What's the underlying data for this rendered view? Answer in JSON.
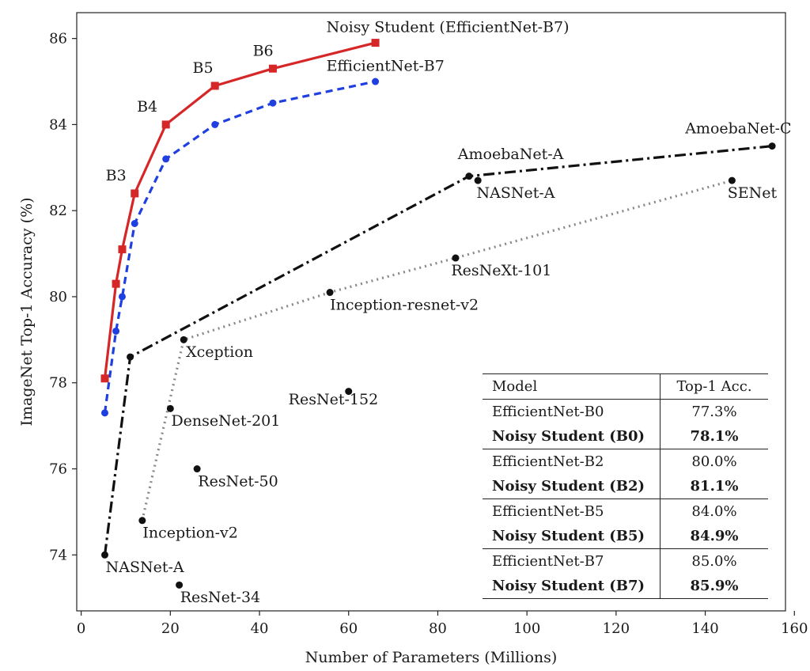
{
  "chart_data": {
    "type": "scatter",
    "xlabel": "Number of Parameters (Millions)",
    "ylabel": "ImageNet Top-1 Accuracy (%)",
    "xlim": [
      -1,
      158
    ],
    "ylim": [
      72.7,
      86.6
    ],
    "xticks": [
      0,
      20,
      40,
      60,
      80,
      100,
      120,
      140,
      160
    ],
    "yticks": [
      74,
      76,
      78,
      80,
      82,
      84,
      86
    ],
    "grid": false,
    "series": [
      {
        "name": "Noisy Student (EfficientNet-B7)",
        "style": "solid",
        "marker": "square",
        "color": "#d62728",
        "points": [
          [
            5.3,
            78.1
          ],
          [
            7.8,
            80.3
          ],
          [
            9.2,
            81.1
          ],
          [
            12,
            82.4
          ],
          [
            19,
            84.0
          ],
          [
            30,
            84.9
          ],
          [
            43,
            85.3
          ],
          [
            66,
            85.9
          ]
        ]
      },
      {
        "name": "EfficientNet-B7",
        "style": "dashed",
        "marker": "circle",
        "color": "#1f3fe0",
        "points": [
          [
            5.3,
            77.3
          ],
          [
            7.8,
            79.2
          ],
          [
            9.2,
            80.0
          ],
          [
            12,
            81.7
          ],
          [
            19,
            83.2
          ],
          [
            30,
            84.0
          ],
          [
            43,
            84.5
          ],
          [
            66,
            85.0
          ]
        ]
      },
      {
        "style": "dashdot",
        "marker": "circle",
        "color": "#111111",
        "points": [
          [
            5.3,
            74.0
          ],
          [
            11,
            78.6
          ],
          [
            87,
            82.8
          ],
          [
            155,
            83.5
          ]
        ]
      },
      {
        "style": "dotted",
        "marker": "circle",
        "color": "#888888",
        "points": [
          [
            13.7,
            74.8
          ],
          [
            23,
            79.0
          ],
          [
            55.8,
            80.1
          ],
          [
            84,
            80.9
          ],
          [
            146,
            82.7
          ]
        ]
      }
    ],
    "extra_points": [
      {
        "x": 20,
        "y": 77.4,
        "color": "#111111"
      },
      {
        "x": 60,
        "y": 77.8,
        "color": "#111111"
      },
      {
        "x": 26,
        "y": 76.0,
        "color": "#111111"
      },
      {
        "x": 22,
        "y": 73.3,
        "color": "#111111"
      },
      {
        "x": 89,
        "y": 82.7,
        "color": "#111111"
      }
    ],
    "annotations": [
      {
        "text": "Noisy Student (EfficientNet-B7)",
        "x": 55,
        "y": 86.15
      },
      {
        "text": "EfficientNet-B7",
        "x": 55,
        "y": 85.25
      },
      {
        "text": "B6",
        "x": 38.5,
        "y": 85.6
      },
      {
        "text": "B5",
        "x": 25,
        "y": 85.2
      },
      {
        "text": "B4",
        "x": 12.5,
        "y": 84.3
      },
      {
        "text": "B3",
        "x": 5.5,
        "y": 82.7
      },
      {
        "text": "AmoebaNet-A",
        "x": 84.5,
        "y": 83.2
      },
      {
        "text": "NASNet-A",
        "x": 88.7,
        "y": 82.3
      },
      {
        "text": "AmoebaNet-C",
        "x": 135.5,
        "y": 83.8
      },
      {
        "text": "SENet",
        "x": 145,
        "y": 82.3
      },
      {
        "text": "ResNeXt-101",
        "x": 83,
        "y": 80.5
      },
      {
        "text": "Inception-resnet-v2",
        "x": 55.8,
        "y": 79.7
      },
      {
        "text": "Xception",
        "x": 23.5,
        "y": 78.6
      },
      {
        "text": "ResNet-152",
        "x": 46.5,
        "y": 77.5
      },
      {
        "text": "DenseNet-201",
        "x": 20.2,
        "y": 77.0
      },
      {
        "text": "ResNet-50",
        "x": 26.2,
        "y": 75.6
      },
      {
        "text": "Inception-v2",
        "x": 13.8,
        "y": 74.4
      },
      {
        "text": "NASNet-A",
        "x": 5.5,
        "y": 73.6
      },
      {
        "text": "ResNet-34",
        "x": 22.2,
        "y": 72.9
      }
    ]
  },
  "table": {
    "headers": [
      "Model",
      "Top-1 Acc."
    ],
    "rows": [
      {
        "model": "EfficientNet-B0",
        "acc": "77.3%"
      },
      {
        "model": "Noisy Student (B0)",
        "acc": "78.1%"
      },
      {
        "model": "EfficientNet-B2",
        "acc": "80.0%"
      },
      {
        "model": "Noisy Student (B2)",
        "acc": "81.1%"
      },
      {
        "model": "EfficientNet-B5",
        "acc": "84.0%"
      },
      {
        "model": "Noisy Student (B5)",
        "acc": "84.9%"
      },
      {
        "model": "EfficientNet-B7",
        "acc": "85.0%"
      },
      {
        "model": "Noisy Student (B7)",
        "acc": "85.9%"
      }
    ]
  }
}
